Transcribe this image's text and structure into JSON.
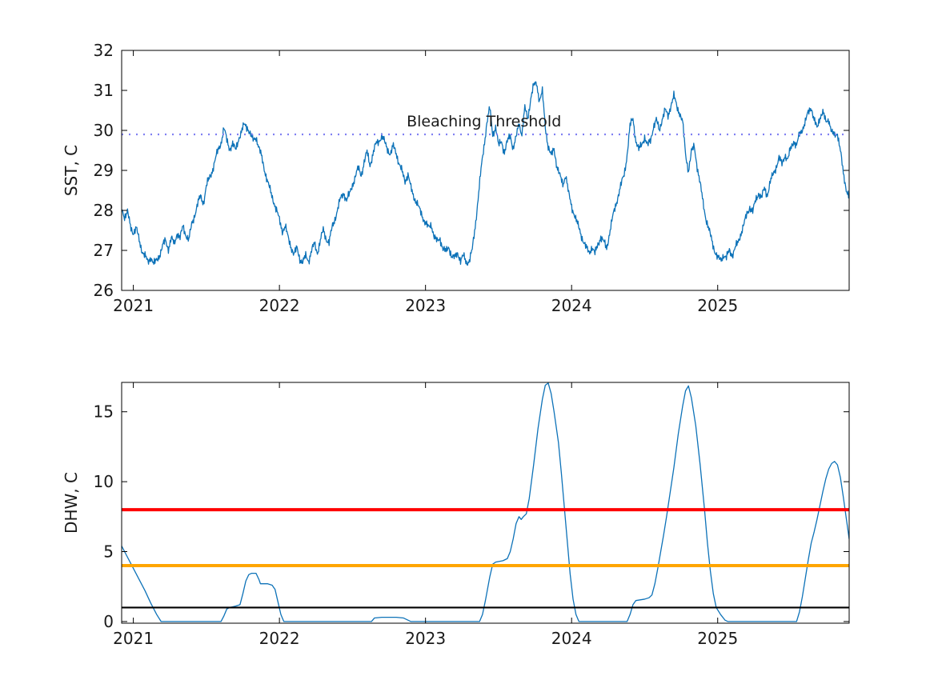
{
  "figure": {
    "background": "#ffffff",
    "text_color": "#1a1a1a",
    "line_blue": "#0d72b8"
  },
  "chart_data": [
    {
      "type": "line",
      "title": "",
      "xlabel": "",
      "ylabel": "SST, C",
      "xlim": [
        2020.92,
        2025.9
      ],
      "ylim": [
        26,
        32
      ],
      "xticks": [
        2021,
        2022,
        2023,
        2024,
        2025
      ],
      "yticks": [
        26,
        27,
        28,
        29,
        30,
        31,
        32
      ],
      "grid": false,
      "legend": "none",
      "annotation": {
        "text": "Bleaching Threshold",
        "x": 2023.4,
        "y": 30.1,
        "color": "#1a1a1a"
      },
      "threshold_line": {
        "name": "bleaching-threshold",
        "value": 29.9,
        "style": "dotted",
        "color": "#8080f2",
        "width": 2.2
      },
      "series": [
        {
          "name": "SST",
          "color": "#0d72b8",
          "width": 1.3,
          "noise_amplitude": 0.055,
          "t_start": 2020.92,
          "dt": 0.02,
          "values": [
            28.05,
            27.85,
            27.95,
            27.6,
            27.45,
            27.55,
            27.25,
            27.0,
            26.85,
            26.7,
            26.85,
            26.65,
            26.75,
            26.9,
            27.1,
            27.25,
            27.05,
            27.3,
            27.15,
            27.45,
            27.3,
            27.6,
            27.4,
            27.25,
            27.65,
            27.9,
            28.15,
            28.35,
            28.2,
            28.6,
            28.8,
            29.0,
            29.25,
            29.5,
            29.7,
            30.05,
            29.75,
            29.55,
            29.65,
            29.5,
            29.8,
            29.95,
            30.15,
            30.1,
            29.9,
            29.75,
            29.85,
            29.55,
            29.3,
            29.0,
            28.7,
            28.45,
            28.25,
            28.0,
            27.75,
            27.5,
            27.6,
            27.3,
            27.1,
            26.9,
            27.05,
            26.8,
            26.7,
            26.85,
            26.75,
            27.0,
            27.15,
            26.95,
            27.25,
            27.5,
            27.3,
            27.2,
            27.55,
            27.8,
            28.05,
            28.3,
            28.45,
            28.25,
            28.4,
            28.65,
            28.85,
            29.05,
            28.9,
            29.2,
            29.45,
            29.15,
            29.4,
            29.65,
            29.75,
            29.85,
            29.7,
            29.55,
            29.4,
            29.6,
            29.45,
            29.15,
            28.95,
            28.75,
            28.9,
            28.55,
            28.35,
            28.2,
            28.0,
            27.85,
            27.7,
            27.55,
            27.65,
            27.35,
            27.2,
            27.3,
            27.05,
            26.95,
            27.1,
            26.85,
            26.8,
            26.95,
            26.75,
            26.85,
            26.7,
            26.75,
            27.0,
            27.6,
            28.3,
            29.0,
            29.6,
            30.2,
            30.55,
            29.9,
            30.1,
            29.6,
            29.75,
            29.45,
            29.7,
            29.9,
            29.55,
            29.8,
            30.2,
            29.9,
            30.55,
            30.3,
            30.8,
            31.1,
            31.2,
            30.75,
            30.95,
            30.1,
            29.6,
            29.35,
            29.55,
            29.1,
            28.85,
            28.65,
            28.9,
            28.4,
            28.1,
            27.9,
            27.65,
            27.45,
            27.25,
            27.05,
            26.95,
            27.1,
            26.9,
            27.15,
            27.35,
            27.2,
            27.05,
            27.45,
            27.8,
            28.1,
            28.4,
            28.65,
            28.9,
            29.4,
            30.1,
            30.3,
            29.75,
            29.5,
            29.65,
            29.85,
            29.6,
            29.75,
            30.1,
            30.25,
            30.0,
            30.3,
            30.5,
            30.35,
            30.65,
            30.85,
            30.6,
            30.45,
            30.2,
            29.4,
            29.0,
            29.45,
            29.6,
            29.1,
            28.65,
            28.2,
            27.8,
            27.5,
            27.25,
            27.0,
            26.8,
            26.75,
            26.9,
            26.8,
            27.0,
            26.9,
            27.05,
            27.2,
            27.45,
            27.65,
            27.9,
            28.1,
            27.95,
            28.25,
            28.45,
            28.3,
            28.55,
            28.4,
            28.7,
            28.9,
            29.1,
            29.3,
            29.15,
            29.4,
            29.25,
            29.55,
            29.75,
            29.6,
            29.9,
            30.05,
            30.2,
            30.45,
            30.6,
            30.25,
            30.05,
            30.35,
            30.45,
            30.2,
            30.3,
            29.95,
            29.85,
            29.95,
            29.5,
            28.9,
            28.55,
            28.35
          ]
        }
      ]
    },
    {
      "type": "line",
      "title": "",
      "xlabel": "",
      "ylabel": "DHW, C",
      "xlim": [
        2020.92,
        2025.9
      ],
      "ylim": [
        -0.12,
        17.1
      ],
      "xticks": [
        2021,
        2022,
        2023,
        2024,
        2025
      ],
      "yticks": [
        0,
        5,
        10,
        15
      ],
      "grid": false,
      "legend": "none",
      "hlines": [
        {
          "name": "dhw-red-line",
          "value": 8,
          "color": "#ff0000",
          "width": 4
        },
        {
          "name": "dhw-orange-line",
          "value": 4,
          "color": "#ffa500",
          "width": 4
        },
        {
          "name": "dhw-black-line",
          "value": 1,
          "color": "#000000",
          "width": 2.2
        }
      ],
      "series": [
        {
          "name": "DHW",
          "color": "#0d72b8",
          "width": 1.3,
          "points": [
            [
              2020.92,
              5.4
            ],
            [
              2020.96,
              4.6
            ],
            [
              2021.0,
              3.8
            ],
            [
              2021.04,
              3.0
            ],
            [
              2021.08,
              2.2
            ],
            [
              2021.12,
              1.3
            ],
            [
              2021.16,
              0.5
            ],
            [
              2021.19,
              0
            ],
            [
              2021.6,
              0
            ],
            [
              2021.62,
              0.4
            ],
            [
              2021.64,
              0.9
            ],
            [
              2021.66,
              1.0
            ],
            [
              2021.7,
              1.1
            ],
            [
              2021.73,
              1.2
            ],
            [
              2021.75,
              2.0
            ],
            [
              2021.77,
              2.9
            ],
            [
              2021.79,
              3.35
            ],
            [
              2021.81,
              3.45
            ],
            [
              2021.84,
              3.45
            ],
            [
              2021.86,
              3.0
            ],
            [
              2021.87,
              2.7
            ],
            [
              2021.92,
              2.7
            ],
            [
              2021.95,
              2.6
            ],
            [
              2021.97,
              2.3
            ],
            [
              2021.99,
              1.4
            ],
            [
              2022.01,
              0.5
            ],
            [
              2022.03,
              0
            ],
            [
              2022.63,
              0
            ],
            [
              2022.65,
              0.25
            ],
            [
              2022.7,
              0.3
            ],
            [
              2022.8,
              0.3
            ],
            [
              2022.85,
              0.25
            ],
            [
              2022.88,
              0.1
            ],
            [
              2022.9,
              0
            ],
            [
              2023.37,
              0
            ],
            [
              2023.39,
              0.5
            ],
            [
              2023.41,
              1.5
            ],
            [
              2023.44,
              3.2
            ],
            [
              2023.46,
              4.1
            ],
            [
              2023.48,
              4.25
            ],
            [
              2023.53,
              4.35
            ],
            [
              2023.56,
              4.5
            ],
            [
              2023.58,
              5.0
            ],
            [
              2023.6,
              5.9
            ],
            [
              2023.62,
              7.0
            ],
            [
              2023.64,
              7.5
            ],
            [
              2023.655,
              7.3
            ],
            [
              2023.67,
              7.5
            ],
            [
              2023.69,
              7.7
            ],
            [
              2023.71,
              8.8
            ],
            [
              2023.74,
              11.2
            ],
            [
              2023.77,
              13.8
            ],
            [
              2023.8,
              15.9
            ],
            [
              2023.82,
              16.9
            ],
            [
              2023.84,
              17.05
            ],
            [
              2023.86,
              16.3
            ],
            [
              2023.88,
              15.0
            ],
            [
              2023.91,
              12.8
            ],
            [
              2023.93,
              10.6
            ],
            [
              2023.95,
              8.2
            ],
            [
              2023.97,
              5.8
            ],
            [
              2023.99,
              3.4
            ],
            [
              2024.01,
              1.6
            ],
            [
              2024.03,
              0.5
            ],
            [
              2024.05,
              0
            ],
            [
              2024.38,
              0
            ],
            [
              2024.4,
              0.5
            ],
            [
              2024.42,
              1.2
            ],
            [
              2024.44,
              1.5
            ],
            [
              2024.47,
              1.55
            ],
            [
              2024.5,
              1.6
            ],
            [
              2024.53,
              1.7
            ],
            [
              2024.55,
              1.9
            ],
            [
              2024.57,
              2.7
            ],
            [
              2024.59,
              3.8
            ],
            [
              2024.61,
              5.0
            ],
            [
              2024.63,
              6.2
            ],
            [
              2024.65,
              7.5
            ],
            [
              2024.67,
              8.9
            ],
            [
              2024.7,
              11.0
            ],
            [
              2024.73,
              13.4
            ],
            [
              2024.76,
              15.4
            ],
            [
              2024.78,
              16.5
            ],
            [
              2024.8,
              16.85
            ],
            [
              2024.82,
              16.0
            ],
            [
              2024.85,
              14.0
            ],
            [
              2024.88,
              11.2
            ],
            [
              2024.91,
              8.0
            ],
            [
              2024.93,
              5.6
            ],
            [
              2024.95,
              3.6
            ],
            [
              2024.97,
              2.0
            ],
            [
              2024.99,
              1.0
            ],
            [
              2025.02,
              0.5
            ],
            [
              2025.05,
              0.1
            ],
            [
              2025.07,
              0
            ],
            [
              2025.54,
              0
            ],
            [
              2025.56,
              0.7
            ],
            [
              2025.58,
              1.8
            ],
            [
              2025.6,
              3.1
            ],
            [
              2025.62,
              4.4
            ],
            [
              2025.64,
              5.6
            ],
            [
              2025.66,
              6.4
            ],
            [
              2025.68,
              7.3
            ],
            [
              2025.7,
              8.3
            ],
            [
              2025.72,
              9.3
            ],
            [
              2025.74,
              10.2
            ],
            [
              2025.76,
              10.9
            ],
            [
              2025.78,
              11.3
            ],
            [
              2025.8,
              11.45
            ],
            [
              2025.82,
              11.2
            ],
            [
              2025.84,
              10.3
            ],
            [
              2025.86,
              8.9
            ],
            [
              2025.88,
              7.4
            ],
            [
              2025.9,
              5.9
            ]
          ]
        }
      ]
    }
  ]
}
